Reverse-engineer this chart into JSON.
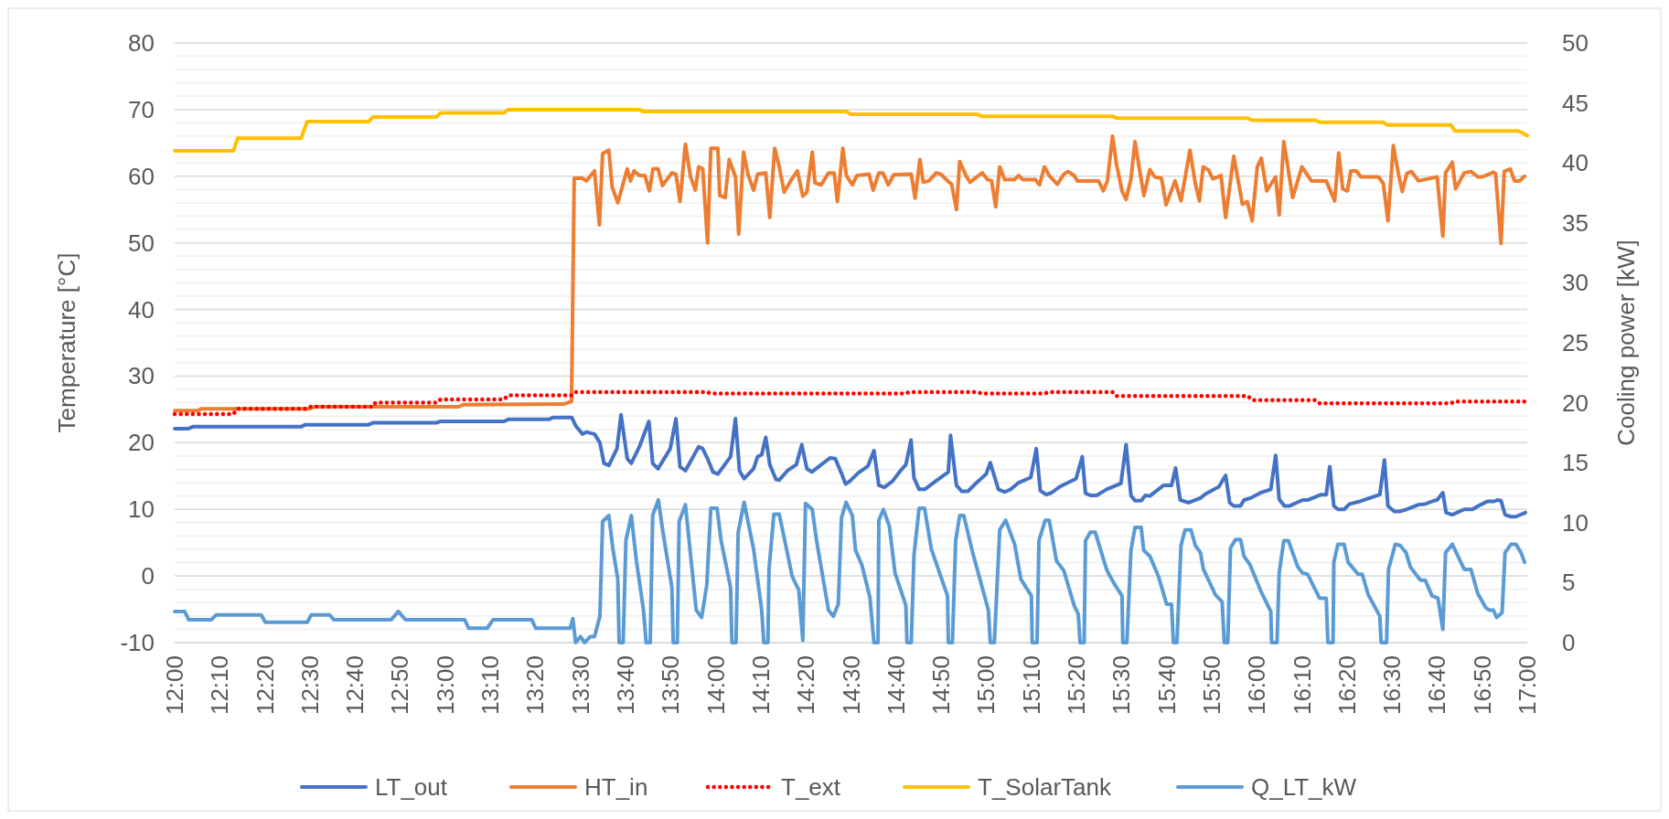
{
  "chart_data": {
    "type": "line",
    "ylabel": "Temperature [°C]",
    "y2label": "Cooling power [kW]",
    "xlim": [
      12,
      17
    ],
    "xticks": [
      {
        "value": 12,
        "label": "12:00"
      },
      {
        "value": 12.167,
        "label": "12:10"
      },
      {
        "value": 12.333,
        "label": "12:20"
      },
      {
        "value": 12.5,
        "label": "12:30"
      },
      {
        "value": 12.667,
        "label": "12:40"
      },
      {
        "value": 12.833,
        "label": "12:50"
      },
      {
        "value": 13,
        "label": "13:00"
      },
      {
        "value": 13.167,
        "label": "13:10"
      },
      {
        "value": 13.333,
        "label": "13:20"
      },
      {
        "value": 13.5,
        "label": "13:30"
      },
      {
        "value": 13.667,
        "label": "13:40"
      },
      {
        "value": 13.833,
        "label": "13:50"
      },
      {
        "value": 14,
        "label": "14:00"
      },
      {
        "value": 14.167,
        "label": "14:10"
      },
      {
        "value": 14.333,
        "label": "14:20"
      },
      {
        "value": 14.5,
        "label": "14:30"
      },
      {
        "value": 14.667,
        "label": "14:40"
      },
      {
        "value": 14.833,
        "label": "14:50"
      },
      {
        "value": 15,
        "label": "15:00"
      },
      {
        "value": 15.167,
        "label": "15:10"
      },
      {
        "value": 15.333,
        "label": "15:20"
      },
      {
        "value": 15.5,
        "label": "15:30"
      },
      {
        "value": 15.667,
        "label": "15:40"
      },
      {
        "value": 15.833,
        "label": "15:50"
      },
      {
        "value": 16,
        "label": "16:00"
      },
      {
        "value": 16.167,
        "label": "16:10"
      },
      {
        "value": 16.333,
        "label": "16:20"
      },
      {
        "value": 16.5,
        "label": "16:30"
      },
      {
        "value": 16.667,
        "label": "16:40"
      },
      {
        "value": 16.833,
        "label": "16:50"
      },
      {
        "value": 17,
        "label": "17:00"
      }
    ],
    "ylim": [
      -10,
      80
    ],
    "yticks": [
      -10,
      {
        "value": -8,
        "label": null
      },
      {
        "value": -6,
        "label": null
      },
      {
        "value": -4,
        "label": null
      },
      {
        "value": -2,
        "label": null
      },
      0,
      {
        "value": 2,
        "label": null
      },
      {
        "value": 4,
        "label": null
      },
      {
        "value": 6,
        "label": null
      },
      {
        "value": 8,
        "label": null
      },
      10,
      {
        "value": 12,
        "label": null
      },
      {
        "value": 14,
        "label": null
      },
      {
        "value": 16,
        "label": null
      },
      {
        "value": 18,
        "label": null
      },
      20,
      {
        "value": 22,
        "label": null
      },
      {
        "value": 24,
        "label": null
      },
      {
        "value": 26,
        "label": null
      },
      {
        "value": 28,
        "label": null
      },
      30,
      {
        "value": 32,
        "label": null
      },
      {
        "value": 34,
        "label": null
      },
      {
        "value": 36,
        "label": null
      },
      {
        "value": 38,
        "label": null
      },
      40,
      {
        "value": 42,
        "label": null
      },
      {
        "value": 44,
        "label": null
      },
      {
        "value": 46,
        "label": null
      },
      {
        "value": 48,
        "label": null
      },
      50,
      {
        "value": 52,
        "label": null
      },
      {
        "value": 54,
        "label": null
      },
      {
        "value": 56,
        "label": null
      },
      {
        "value": 58,
        "label": null
      },
      60,
      {
        "value": 62,
        "label": null
      },
      {
        "value": 64,
        "label": null
      },
      {
        "value": 66,
        "label": null
      },
      {
        "value": 68,
        "label": null
      },
      70,
      {
        "value": 72,
        "label": null
      },
      {
        "value": 74,
        "label": null
      },
      {
        "value": 76,
        "label": null
      },
      {
        "value": 78,
        "label": null
      },
      80
    ],
    "y2lim": [
      0,
      50
    ],
    "y2ticks": [
      0,
      5,
      10,
      15,
      20,
      25,
      30,
      35,
      40,
      45,
      50
    ],
    "grid": "y",
    "legend": "bottom",
    "series": [
      {
        "name": "LT_out",
        "color": "#4472c4",
        "line_style": "solid",
        "x": [
          12,
          12.05,
          12.067,
          12.467,
          12.483,
          12.717,
          12.733,
          12.967,
          12.983,
          13.217,
          13.233,
          13.383,
          13.4,
          13.468,
          13.483,
          13.507,
          13.522,
          13.552,
          13.572,
          13.587,
          13.605,
          13.635,
          13.65,
          13.673,
          13.688,
          13.718,
          13.753,
          13.767,
          13.787,
          13.832,
          13.853,
          13.868,
          13.888,
          13.937,
          13.952,
          13.97,
          13.99,
          14.008,
          14.055,
          14.073,
          14.088,
          14.105,
          14.14,
          14.155,
          14.17,
          14.185,
          14.2,
          14.223,
          14.235,
          14.265,
          14.298,
          14.318,
          14.337,
          14.355,
          14.39,
          14.422,
          14.442,
          14.465,
          14.48,
          14.495,
          14.525,
          14.563,
          14.585,
          14.603,
          14.623,
          14.653,
          14.683,
          14.703,
          14.722,
          14.733,
          14.752,
          14.773,
          14.812,
          14.86,
          14.868,
          14.89,
          14.91,
          14.932,
          14.962,
          15,
          15.015,
          15.045,
          15.068,
          15.09,
          15.12,
          15.165,
          15.185,
          15.2,
          15.222,
          15.242,
          15.272,
          15.302,
          15.332,
          15.355,
          15.367,
          15.385,
          15.408,
          15.445,
          15.498,
          15.517,
          15.535,
          15.55,
          15.573,
          15.588,
          15.605,
          15.655,
          15.685,
          15.7,
          15.717,
          15.748,
          15.792,
          15.81,
          15.86,
          15.885,
          15.9,
          15.915,
          15.94,
          15.953,
          15.978,
          16.015,
          16.052,
          16.07,
          16.083,
          16.102,
          16.12,
          16.17,
          16.188,
          16.238,
          16.257,
          16.27,
          16.285,
          16.3,
          16.323,
          16.343,
          16.382,
          16.455,
          16.472,
          16.485,
          16.508,
          16.53,
          16.555,
          16.598,
          16.623,
          16.655,
          16.667,
          16.688,
          16.7,
          16.723,
          16.767,
          16.797,
          16.828,
          16.853,
          16.878,
          16.89,
          16.903,
          16.918,
          16.94,
          16.958,
          16.993
        ],
        "values": [
          22.1,
          22.1,
          22.4,
          22.4,
          22.7,
          22.7,
          23.0,
          23.0,
          23.2,
          23.2,
          23.5,
          23.5,
          23.8,
          23.8,
          22.5,
          21.3,
          21.6,
          21.3,
          20.0,
          16.9,
          16.6,
          19.1,
          24.2,
          17.6,
          16.9,
          19.4,
          23.2,
          16.9,
          16.1,
          19.1,
          23.6,
          16.4,
          15.8,
          19.4,
          19.1,
          17.6,
          15.6,
          15.3,
          17.9,
          23.6,
          15.8,
          14.6,
          16.1,
          17.9,
          18.2,
          20.8,
          16.7,
          14.5,
          14.4,
          15.8,
          16.7,
          19.7,
          16.1,
          15.6,
          16.7,
          17.7,
          17.6,
          15.4,
          13.8,
          14.2,
          15.4,
          16.5,
          18.8,
          13.6,
          13.3,
          14.2,
          15.8,
          16.7,
          20.4,
          14.7,
          13.0,
          13.0,
          14.2,
          15.6,
          21.1,
          13.6,
          12.7,
          12.7,
          13.9,
          15.3,
          17.0,
          13.0,
          12.6,
          13.0,
          14.0,
          14.8,
          19.1,
          12.8,
          12.2,
          12.5,
          13.4,
          14.0,
          14.6,
          17.9,
          12.4,
          12.1,
          12.1,
          13.0,
          13.9,
          19.7,
          12.1,
          11.3,
          11.3,
          12.1,
          12.0,
          13.6,
          13.6,
          16.2,
          11.4,
          11.0,
          11.7,
          12.3,
          13.4,
          15.1,
          11.0,
          10.5,
          10.5,
          11.4,
          11.7,
          12.5,
          13.0,
          18.1,
          11.5,
          10.5,
          10.5,
          11.4,
          11.4,
          12.2,
          12.2,
          16.4,
          10.5,
          10.0,
          10.0,
          10.8,
          11.2,
          12.2,
          17.4,
          10.5,
          9.7,
          9.7,
          10.0,
          10.7,
          10.8,
          11.3,
          11.4,
          12.5,
          9.5,
          9.2,
          10.0,
          10.0,
          10.7,
          11.2,
          11.2,
          11.4,
          11.3,
          9.2,
          8.9,
          8.9,
          9.5
        ]
      },
      {
        "name": "HT_in",
        "color": "#ed7d31",
        "line_style": "solid",
        "x": [
          12,
          12.083,
          12.1,
          12.5,
          12.517,
          13.05,
          13.067,
          13.438,
          13.467,
          13.477,
          13.507,
          13.522,
          13.552,
          13.57,
          13.582,
          13.605,
          13.617,
          13.638,
          13.673,
          13.685,
          13.698,
          13.718,
          13.738,
          13.755,
          13.768,
          13.787,
          13.803,
          13.838,
          13.853,
          13.868,
          13.888,
          13.907,
          13.925,
          13.937,
          13.952,
          13.97,
          13.982,
          14.008,
          14.015,
          14.035,
          14.05,
          14.073,
          14.085,
          14.103,
          14.12,
          14.14,
          14.155,
          14.185,
          14.2,
          14.218,
          14.235,
          14.253,
          14.277,
          14.302,
          14.322,
          14.337,
          14.357,
          14.367,
          14.39,
          14.417,
          14.438,
          14.45,
          14.47,
          14.483,
          14.505,
          14.522,
          14.567,
          14.582,
          14.603,
          14.618,
          14.638,
          14.658,
          14.723,
          14.737,
          14.755,
          14.767,
          14.788,
          14.815,
          14.833,
          14.857,
          14.872,
          14.89,
          14.902,
          14.925,
          14.94,
          14.985,
          15.005,
          15.02,
          15.035,
          15.05,
          15.068,
          15.105,
          15.12,
          15.135,
          15.182,
          15.197,
          15.215,
          15.233,
          15.263,
          15.287,
          15.302,
          15.325,
          15.337,
          15.415,
          15.433,
          15.448,
          15.467,
          15.482,
          15.502,
          15.517,
          15.535,
          15.55,
          15.565,
          15.583,
          15.605,
          15.623,
          15.648,
          15.665,
          15.698,
          15.72,
          15.753,
          15.773,
          15.788,
          15.802,
          15.822,
          15.838,
          15.868,
          15.885,
          15.915,
          15.947,
          15.965,
          15.983,
          16.002,
          16.017,
          16.037,
          16.07,
          16.083,
          16.1,
          16.133,
          16.167,
          16.202,
          16.257,
          16.288,
          16.303,
          16.318,
          16.335,
          16.348,
          16.368,
          16.385,
          16.45,
          16.468,
          16.485,
          16.505,
          16.523,
          16.538,
          16.555,
          16.572,
          16.598,
          16.667,
          16.688,
          16.698,
          16.723,
          16.735,
          16.767,
          16.792,
          16.817,
          16.835,
          16.875,
          16.883,
          16.903,
          16.915,
          16.937,
          16.953,
          16.972,
          16.99
        ],
        "values": [
          24.8,
          24.8,
          25.1,
          25.1,
          25.4,
          25.4,
          25.7,
          25.8,
          26.2,
          59.7,
          59.7,
          59.3,
          60.8,
          52.7,
          63.4,
          63.9,
          58.4,
          56.0,
          61.1,
          59.3,
          60.8,
          60.1,
          60.1,
          57.8,
          61.1,
          61.1,
          58.6,
          60.5,
          60.3,
          56.2,
          64.8,
          59.9,
          57.9,
          61.4,
          61.1,
          50.0,
          64.2,
          64.2,
          57.1,
          56.8,
          62.5,
          59.9,
          51.3,
          63.6,
          60.2,
          57.9,
          60.3,
          60.5,
          53.8,
          64.2,
          61.4,
          57.6,
          59.3,
          60.8,
          57.0,
          57.6,
          63.6,
          59.0,
          58.7,
          60.5,
          60.5,
          56.2,
          64.2,
          60.1,
          58.7,
          60.1,
          60.3,
          57.9,
          60.5,
          60.5,
          58.7,
          60.2,
          60.3,
          56.7,
          62.5,
          59.1,
          59.3,
          60.5,
          60.3,
          59.3,
          58.8,
          55.0,
          62.2,
          60.1,
          59.1,
          60.5,
          59.5,
          59.3,
          55.4,
          61.4,
          59.5,
          59.5,
          60.1,
          59.5,
          59.5,
          58.7,
          61.4,
          60.1,
          58.8,
          60.3,
          60.7,
          60.1,
          59.3,
          59.3,
          57.8,
          59.3,
          66.0,
          61.7,
          57.8,
          56.5,
          59.6,
          65.2,
          61.4,
          57.1,
          61.0,
          59.9,
          59.7,
          55.7,
          59.3,
          56.3,
          63.9,
          58.9,
          56.3,
          61.4,
          60.9,
          59.6,
          60.1,
          53.8,
          63.0,
          55.8,
          56.2,
          53.3,
          61.4,
          62.7,
          57.8,
          59.9,
          54.2,
          65.2,
          56.8,
          61.4,
          59.3,
          59.3,
          56.3,
          63.5,
          58.1,
          57.8,
          60.8,
          60.8,
          59.9,
          59.9,
          58.9,
          53.3,
          64.6,
          60.5,
          57.7,
          60.4,
          60.7,
          59.3,
          59.9,
          51.0,
          60.5,
          62.1,
          58.1,
          60.5,
          60.7,
          59.9,
          59.9,
          60.6,
          60.4,
          49.9,
          60.7,
          61.1,
          59.3,
          59.3,
          60.0
        ]
      },
      {
        "name": "T_ext",
        "color": "#ff0000",
        "line_style": "dotted",
        "x": [
          12,
          12.217,
          12.233,
          12.483,
          12.5,
          12.733,
          12.742,
          12.967,
          12.983,
          13.217,
          13.233,
          13.467,
          13.483,
          13.967,
          13.983,
          14.7,
          14.717,
          14.967,
          14.983,
          15.217,
          15.233,
          15.467,
          15.483,
          15.967,
          15.983,
          16.217,
          16.233,
          16.717,
          16.733,
          17
        ],
        "values": [
          24.3,
          24.3,
          25.1,
          25.1,
          25.4,
          25.4,
          26.0,
          26.0,
          26.5,
          26.5,
          27.1,
          27.1,
          27.6,
          27.6,
          27.4,
          27.4,
          27.6,
          27.6,
          27.4,
          27.4,
          27.6,
          27.6,
          27.0,
          27.0,
          26.4,
          26.4,
          25.9,
          25.9,
          26.2,
          26.2
        ]
      },
      {
        "name": "T_SolarTank",
        "color": "#ffc000",
        "line_style": "solid",
        "x": [
          12,
          12.217,
          12.233,
          12.467,
          12.49,
          12.717,
          12.733,
          12.967,
          12.983,
          13.217,
          13.233,
          13.717,
          13.733,
          14.483,
          14.5,
          14.967,
          14.983,
          15.467,
          15.483,
          15.967,
          15.983,
          16.217,
          16.233,
          16.467,
          16.483,
          16.717,
          16.733,
          16.967,
          17
        ],
        "values": [
          63.8,
          63.8,
          65.7,
          65.7,
          68.2,
          68.2,
          68.9,
          68.9,
          69.5,
          69.5,
          70.0,
          70.0,
          69.7,
          69.7,
          69.3,
          69.3,
          69.0,
          69.0,
          68.7,
          68.7,
          68.4,
          68.4,
          68.1,
          68.1,
          67.7,
          67.7,
          66.8,
          66.8,
          66.1
        ]
      },
      {
        "name": "Q_LT_kW",
        "color": "#5b9bd5",
        "line_style": "solid",
        "axis": "y2",
        "x": [
          12,
          12.037,
          12.052,
          12.135,
          12.153,
          12.32,
          12.335,
          12.49,
          12.505,
          12.573,
          12.588,
          12.8,
          12.827,
          12.853,
          13.072,
          13.087,
          13.155,
          13.177,
          13.32,
          13.335,
          13.462,
          13.472,
          13.482,
          13.5,
          13.515,
          13.537,
          13.552,
          13.572,
          13.582,
          13.605,
          13.62,
          13.638,
          13.643,
          13.658,
          13.668,
          13.688,
          13.707,
          13.733,
          13.743,
          13.758,
          13.767,
          13.788,
          13.803,
          13.838,
          13.843,
          13.858,
          13.865,
          13.888,
          13.928,
          13.948,
          13.967,
          13.982,
          14.005,
          14.02,
          14.055,
          14.06,
          14.075,
          14.083,
          14.105,
          14.14,
          14.17,
          14.178,
          14.193,
          14.197,
          14.215,
          14.235,
          14.283,
          14.307,
          14.322,
          14.332,
          14.357,
          14.373,
          14.417,
          14.435,
          14.453,
          14.465,
          14.482,
          14.505,
          14.517,
          14.54,
          14.57,
          14.585,
          14.6,
          14.603,
          14.62,
          14.642,
          14.663,
          14.703,
          14.707,
          14.723,
          14.733,
          14.752,
          14.772,
          14.797,
          14.857,
          14.86,
          14.875,
          14.887,
          14.902,
          14.917,
          14.95,
          15.008,
          15.015,
          15.03,
          15.05,
          15.072,
          15.105,
          15.128,
          15.167,
          15.17,
          15.188,
          15.195,
          15.218,
          15.233,
          15.26,
          15.287,
          15.325,
          15.34,
          15.347,
          15.362,
          15.367,
          15.385,
          15.403,
          15.445,
          15.468,
          15.502,
          15.505,
          15.52,
          15.535,
          15.55,
          15.573,
          15.582,
          15.605,
          15.637,
          15.667,
          15.685,
          15.692,
          15.705,
          15.72,
          15.735,
          15.757,
          15.773,
          15.792,
          15.803,
          15.847,
          15.872,
          15.88,
          15.893,
          15.903,
          15.922,
          15.94,
          15.953,
          15.975,
          16.015,
          16.052,
          16.055,
          16.075,
          16.083,
          16.1,
          16.117,
          16.152,
          16.17,
          16.188,
          16.232,
          16.257,
          16.263,
          16.282,
          16.285,
          16.3,
          16.323,
          16.338,
          16.375,
          16.39,
          16.412,
          16.455,
          16.46,
          16.48,
          16.487,
          16.512,
          16.53,
          16.552,
          16.568,
          16.605,
          16.623,
          16.648,
          16.67,
          16.688,
          16.698,
          16.723,
          16.767,
          16.792,
          16.817,
          16.847,
          16.86,
          16.875,
          16.887,
          16.907,
          16.918,
          16.94,
          16.958,
          16.977,
          16.99
        ],
        "values": [
          2.6,
          2.6,
          1.9,
          1.9,
          2.3,
          2.3,
          1.7,
          1.7,
          2.3,
          2.3,
          1.9,
          1.9,
          2.6,
          1.9,
          1.9,
          1.2,
          1.2,
          1.9,
          1.9,
          1.2,
          1.2,
          2.0,
          0,
          0.5,
          0,
          0.5,
          0.5,
          2.2,
          10.1,
          10.6,
          7.8,
          5.3,
          0,
          0,
          8.5,
          10.6,
          6.8,
          2.7,
          0,
          0,
          10.6,
          11.9,
          9.5,
          4.6,
          0,
          0,
          10.1,
          11.5,
          2.7,
          2.1,
          4.8,
          11.2,
          11.2,
          8.5,
          4.6,
          0,
          0,
          9.2,
          11.7,
          7.8,
          2.7,
          0,
          0,
          6.1,
          10.7,
          10.7,
          5.5,
          4.4,
          0.2,
          11.6,
          11.1,
          8.5,
          2.7,
          2.2,
          3.2,
          10.4,
          11.7,
          10.6,
          7.7,
          6.5,
          3.8,
          0,
          0,
          10.2,
          11.1,
          9.7,
          5.8,
          3.1,
          0,
          0,
          7.3,
          11.2,
          11.2,
          7.8,
          3.9,
          0,
          0,
          8.5,
          10.6,
          10.6,
          7.5,
          2.7,
          0,
          0,
          9.4,
          10.2,
          8.2,
          5.3,
          3.9,
          0,
          0,
          8.5,
          10.2,
          10.2,
          6.8,
          6.0,
          3.1,
          2.4,
          0,
          0,
          8.5,
          9.2,
          9.2,
          6.1,
          5.1,
          3.9,
          0,
          0,
          7.7,
          9.6,
          9.6,
          7.7,
          7.2,
          5.5,
          3.2,
          3.2,
          0,
          0,
          8.1,
          9.4,
          9.4,
          8.1,
          7.5,
          6.1,
          4.0,
          3.4,
          0,
          0,
          7.9,
          8.6,
          8.6,
          7.2,
          6.5,
          4.3,
          2.6,
          0,
          0,
          5.8,
          8.5,
          8.5,
          6.3,
          5.8,
          5.7,
          3.7,
          3.7,
          0,
          0,
          6.7,
          8.2,
          8.2,
          6.7,
          5.7,
          5.7,
          4.0,
          2.2,
          0,
          0,
          6.1,
          8.2,
          8.1,
          7.5,
          6.3,
          5.2,
          5.2,
          3.9,
          3.7,
          1.1,
          7.5,
          8.2,
          6.1,
          6.1,
          4.1,
          2.9,
          2.7,
          2.7,
          2.1,
          2.5,
          7.5,
          8.2,
          8.2,
          7.5,
          6.7
        ]
      }
    ]
  }
}
